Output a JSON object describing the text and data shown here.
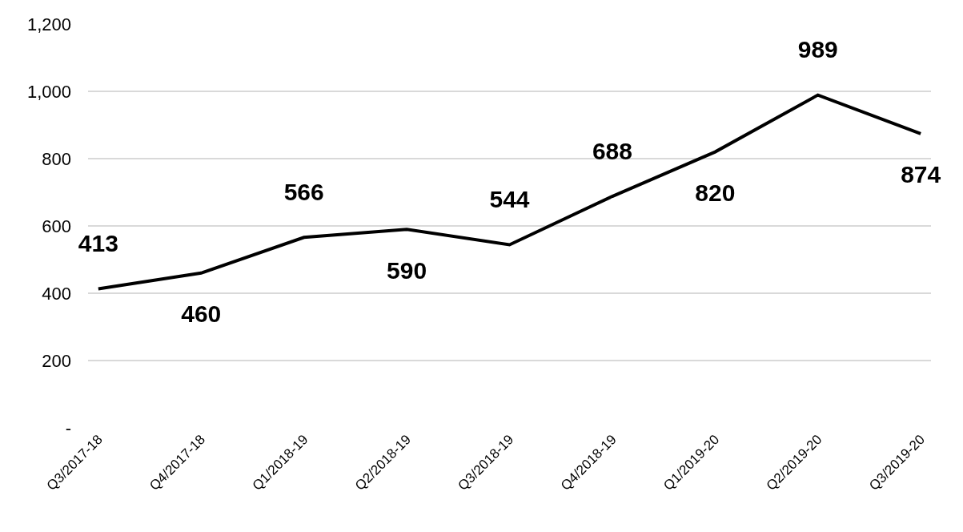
{
  "chart_data": {
    "type": "line",
    "categories": [
      "Q3/2017-18",
      "Q4/2017-18",
      "Q1/2018-19",
      "Q2/2018-19",
      "Q3/2018-19",
      "Q4/2018-19",
      "Q1/2019-20",
      "Q2/2019-20",
      "Q3/2019-20"
    ],
    "series": [
      {
        "color": "#000000",
        "values": [
          413,
          460,
          566,
          590,
          544,
          688,
          820,
          989,
          874
        ]
      }
    ],
    "ylim": [
      0,
      1200
    ],
    "yticks": [
      {
        "value": 0,
        "label": "-"
      },
      {
        "value": 200,
        "label": "200"
      },
      {
        "value": 400,
        "label": "400"
      },
      {
        "value": 600,
        "label": "600"
      },
      {
        "value": 800,
        "label": "800"
      },
      {
        "value": 1000,
        "label": "1,000"
      },
      {
        "value": 1200,
        "label": "1,200"
      }
    ],
    "grid": "y",
    "data_labels": true,
    "legend": false,
    "marker": "none",
    "line_style": "solid"
  }
}
